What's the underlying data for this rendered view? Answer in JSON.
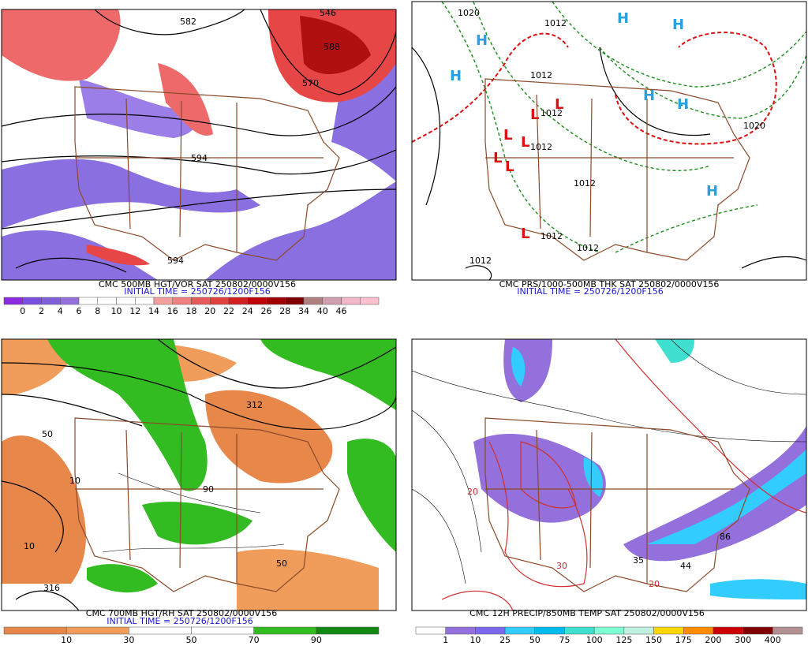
{
  "panels": [
    {
      "title": "CMC 500MB HGT/VOR SAT 250802/0000V156",
      "subtitle": "INITIAL TIME = 250726/1200F156",
      "colorbar": {
        "labels": [
          0,
          2,
          4,
          6,
          8,
          10,
          12,
          14,
          16,
          18,
          20,
          22,
          24,
          26,
          28,
          34,
          40,
          46
        ],
        "colors": [
          "#8a2be2",
          "#7b4fe0",
          "#8060d8",
          "#9370db",
          "#ffffff",
          "#ffffff",
          "#ffffff",
          "#ffffff",
          "#f4a0a0",
          "#f08080",
          "#e85a5a",
          "#e04040",
          "#d02020",
          "#c00000",
          "#a00000",
          "#800000",
          "#b08080",
          "#d0a0b0",
          "#f0b8c8",
          "#ffc0d0"
        ]
      },
      "contour_labels": [
        "546",
        "582",
        "588",
        "570",
        "594",
        "594"
      ]
    },
    {
      "title": "CMC PRS/1000-500MB THK SAT 250802/0000V156",
      "subtitle": "INITIAL TIME = 250726/1200F156",
      "contour_labels": [
        "1020",
        "1012",
        "1012",
        "1012",
        "1012",
        "1012",
        "1012",
        "1020",
        "1012",
        "1012"
      ],
      "highs": [
        "H",
        "H",
        "H",
        "H",
        "H",
        "H",
        "H"
      ],
      "lows": [
        "L",
        "L",
        "L",
        "L",
        "L",
        "L",
        "L"
      ]
    },
    {
      "title": "CMC 700MB HGT/RH SAT 250802/0000V156",
      "subtitle": "INITIAL TIME = 250726/1200F156",
      "colorbar": {
        "labels": [
          10,
          30,
          50,
          70,
          90
        ],
        "colors": [
          "#e8874a",
          "#f09c5a",
          "#ffffff",
          "#ffffff",
          "#33bb22",
          "#118811"
        ]
      },
      "contour_labels": [
        "50",
        "10",
        "10",
        "312",
        "316",
        "90",
        "50"
      ]
    },
    {
      "title": "CMC 12H PRECIP/850MB TEMP SAT 250802/0000V156",
      "subtitle": "INITIAL TIME = 250726/1200F156",
      "colorbar": {
        "labels": [
          1,
          10,
          25,
          50,
          75,
          100,
          125,
          150,
          175,
          200,
          300,
          400
        ],
        "colors": [
          "#ffffff",
          "#9370db",
          "#7b68ee",
          "#33ccff",
          "#00bbee",
          "#40e0d0",
          "#7fffd4",
          "#c0f0e0",
          "#ffd700",
          "#ff8c00",
          "#cc0000",
          "#800000",
          "#b09090"
        ]
      },
      "contour_labels": [
        "35",
        "44",
        "86",
        "20",
        "20",
        "30"
      ]
    }
  ]
}
